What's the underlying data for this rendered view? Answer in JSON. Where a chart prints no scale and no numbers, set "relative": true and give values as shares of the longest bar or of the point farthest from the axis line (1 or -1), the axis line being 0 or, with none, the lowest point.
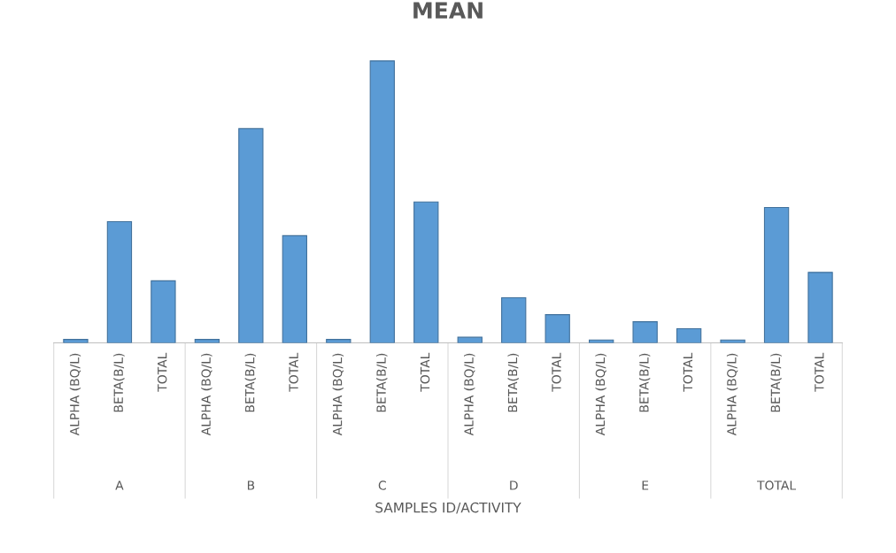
{
  "chart_data": {
    "type": "bar",
    "title": "MEAN",
    "xlabel": "SAMPLES ID/ACTIVITY",
    "relative": true,
    "color": "#5b9bd5",
    "categories": [
      "ALPHA (BQ/L)",
      "BETA(B/L)",
      "TOTAL",
      "ALPHA (BQ/L)",
      "BETA(B/L)",
      "TOTAL",
      "ALPHA (BQ/L)",
      "BETA(B/L)",
      "TOTAL",
      "ALPHA (BQ/L)",
      "BETA(B/L)",
      "TOTAL",
      "ALPHA (BQ/L)",
      "BETA(B/L)",
      "TOTAL",
      "ALPHA (BQ/L)",
      "BETA(B/L)",
      "TOTAL"
    ],
    "values": [
      0.012,
      0.43,
      0.22,
      0.012,
      0.76,
      0.38,
      0.012,
      1,
      0.5,
      0.02,
      0.16,
      0.1,
      0.01,
      0.075,
      0.05,
      0.01,
      0.48,
      0.25
    ],
    "annotations": [
      "A",
      "B",
      "C",
      "D",
      "E",
      "TOTAL"
    ],
    "grid": false
  }
}
